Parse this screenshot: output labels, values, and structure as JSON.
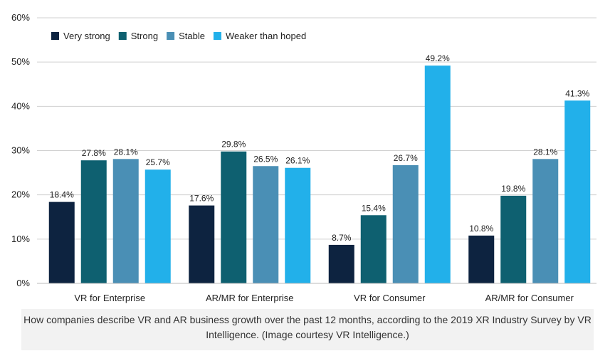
{
  "chart_data": {
    "type": "bar",
    "categories": [
      "VR for Enterprise",
      "AR/MR for Enterprise",
      "VR for Consumer",
      "AR/MR for Consumer"
    ],
    "series": [
      {
        "name": "Very strong",
        "values": [
          18.4,
          17.6,
          8.7,
          10.8
        ],
        "labels": [
          "18.4%",
          "17.6%",
          "8.7%",
          "10.8%"
        ],
        "color": "#0d2340"
      },
      {
        "name": "Strong",
        "values": [
          27.8,
          29.8,
          15.4,
          19.8
        ],
        "labels": [
          "27.8%",
          "29.8%",
          "15.4%",
          "19.8%"
        ],
        "color": "#0e6070"
      },
      {
        "name": "Stable",
        "values": [
          28.1,
          26.5,
          26.7,
          28.1
        ],
        "labels": [
          "28.1%",
          "26.5%",
          "26.7%",
          "28.1%"
        ],
        "color": "#4a8fb5"
      },
      {
        "name": "Weaker than hoped",
        "values": [
          25.7,
          26.1,
          49.2,
          41.3
        ],
        "labels": [
          "25.7%",
          "26.1%",
          "49.2%",
          "41.3%"
        ],
        "color": "#22b0ea"
      }
    ],
    "yticks": [
      "0%",
      "10%",
      "20%",
      "30%",
      "40%",
      "50%",
      "60%"
    ],
    "ylim": [
      0,
      60
    ],
    "grid": true,
    "legend": "top-left",
    "caption": "How companies describe VR and AR business growth over the past 12 months, according to the 2019 XR Industry Survey by VR Intelligence. (Image courtesy VR Intelligence.)"
  }
}
